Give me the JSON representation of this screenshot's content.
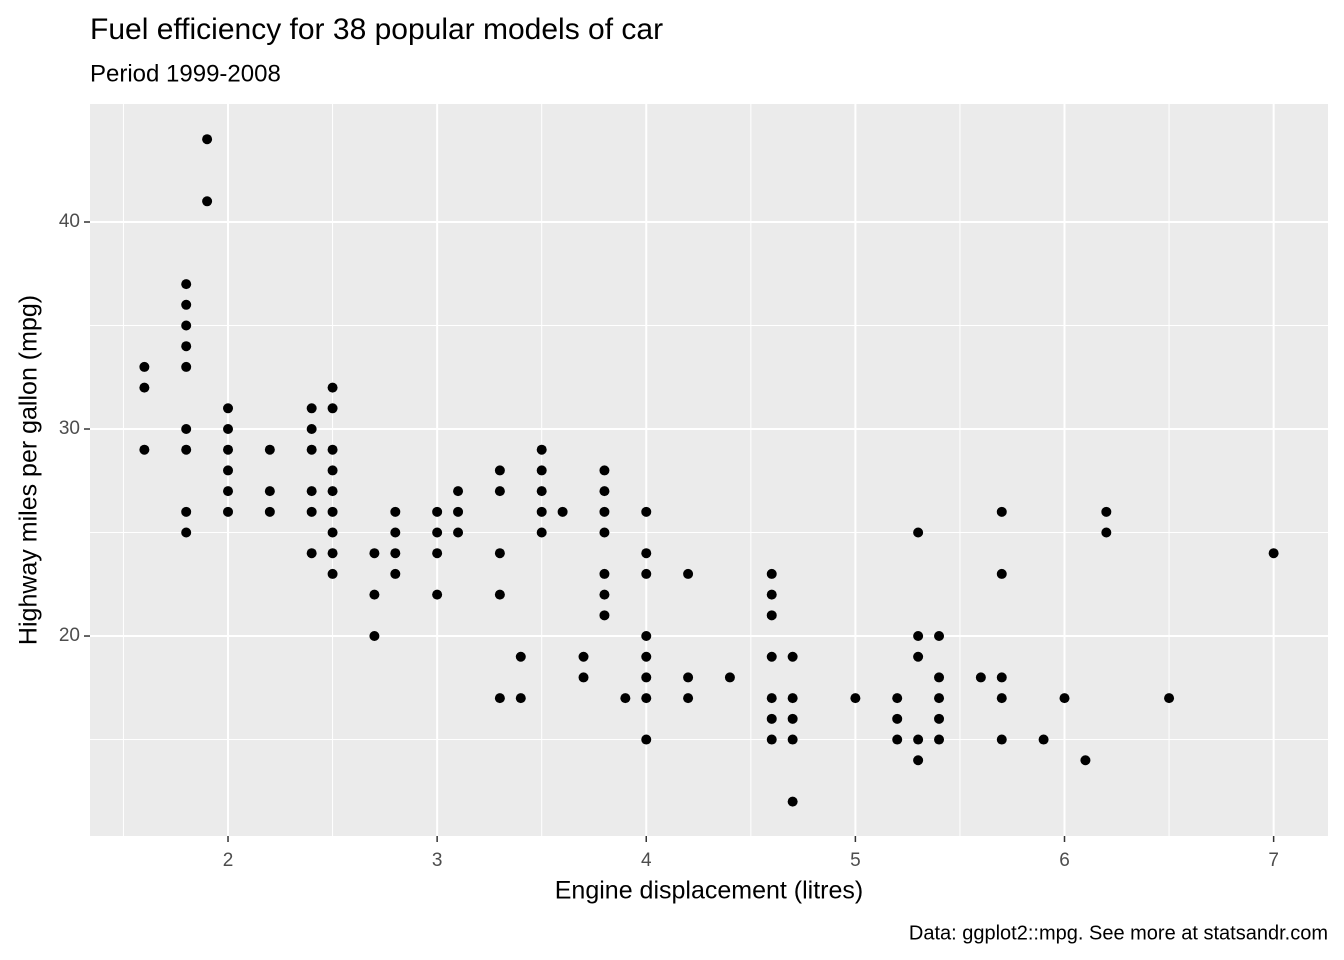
{
  "chart_data": {
    "type": "scatter",
    "title": "Fuel efficiency for 38 popular models of car",
    "subtitle": "Period 1999-2008",
    "xlabel": "Engine displacement (litres)",
    "ylabel": "Highway miles per gallon (mpg)",
    "caption": "Data: ggplot2::mpg. See more at statsandr.com",
    "color": "#000000",
    "grid": true,
    "xlim": [
      1.34,
      7.26
    ],
    "ylim": [
      10.34,
      45.7
    ],
    "xticks": [
      2,
      3,
      4,
      5,
      6,
      7
    ],
    "yticks": [
      20,
      30,
      40
    ],
    "xminor": [
      1.5,
      2.5,
      3.5,
      4.5,
      5.5,
      6.5
    ],
    "yminor": [
      15,
      25,
      35
    ],
    "x": [
      1.6,
      1.6,
      1.6,
      1.8,
      1.8,
      1.8,
      1.8,
      1.8,
      1.8,
      1.8,
      1.8,
      1.8,
      1.9,
      1.9,
      2.0,
      2.0,
      2.0,
      2.0,
      2.0,
      2.0,
      2.2,
      2.2,
      2.2,
      2.4,
      2.4,
      2.4,
      2.4,
      2.4,
      2.4,
      2.5,
      2.5,
      2.5,
      2.5,
      2.5,
      2.5,
      2.5,
      2.5,
      2.5,
      2.7,
      2.7,
      2.7,
      2.8,
      2.8,
      2.8,
      2.8,
      3.0,
      3.0,
      3.0,
      3.0,
      3.1,
      3.1,
      3.1,
      3.3,
      3.3,
      3.3,
      3.3,
      3.3,
      3.4,
      3.4,
      3.5,
      3.5,
      3.5,
      3.5,
      3.5,
      3.6,
      3.7,
      3.7,
      3.8,
      3.8,
      3.8,
      3.8,
      3.8,
      3.8,
      3.8,
      3.9,
      4.0,
      4.0,
      4.0,
      4.0,
      4.0,
      4.0,
      4.0,
      4.0,
      4.2,
      4.2,
      4.2,
      4.4,
      4.6,
      4.6,
      4.6,
      4.6,
      4.6,
      4.6,
      4.6,
      4.7,
      4.7,
      4.7,
      4.7,
      4.7,
      5.0,
      5.2,
      5.2,
      5.2,
      5.3,
      5.3,
      5.3,
      5.3,
      5.3,
      5.4,
      5.4,
      5.4,
      5.4,
      5.4,
      5.6,
      5.7,
      5.7,
      5.7,
      5.7,
      5.7,
      5.9,
      6.0,
      6.1,
      6.2,
      6.2,
      6.5,
      7.0
    ],
    "values": [
      33,
      32,
      29,
      37,
      36,
      35,
      34,
      33,
      30,
      29,
      26,
      25,
      44,
      41,
      31,
      30,
      29,
      28,
      27,
      26,
      29,
      27,
      26,
      31,
      30,
      29,
      27,
      26,
      24,
      32,
      31,
      29,
      28,
      27,
      26,
      25,
      24,
      23,
      24,
      22,
      20,
      26,
      25,
      24,
      23,
      26,
      25,
      24,
      22,
      27,
      26,
      25,
      28,
      27,
      24,
      22,
      17,
      19,
      17,
      29,
      28,
      27,
      26,
      25,
      26,
      19,
      18,
      28,
      27,
      26,
      25,
      23,
      22,
      21,
      17,
      26,
      24,
      23,
      20,
      19,
      18,
      17,
      15,
      23,
      18,
      17,
      18,
      23,
      22,
      21,
      19,
      17,
      16,
      15,
      19,
      17,
      16,
      15,
      12,
      17,
      17,
      16,
      15,
      25,
      20,
      19,
      15,
      14,
      20,
      18,
      17,
      16,
      15,
      18,
      26,
      23,
      18,
      17,
      15,
      15,
      17,
      14,
      26,
      25,
      17,
      24
    ]
  }
}
